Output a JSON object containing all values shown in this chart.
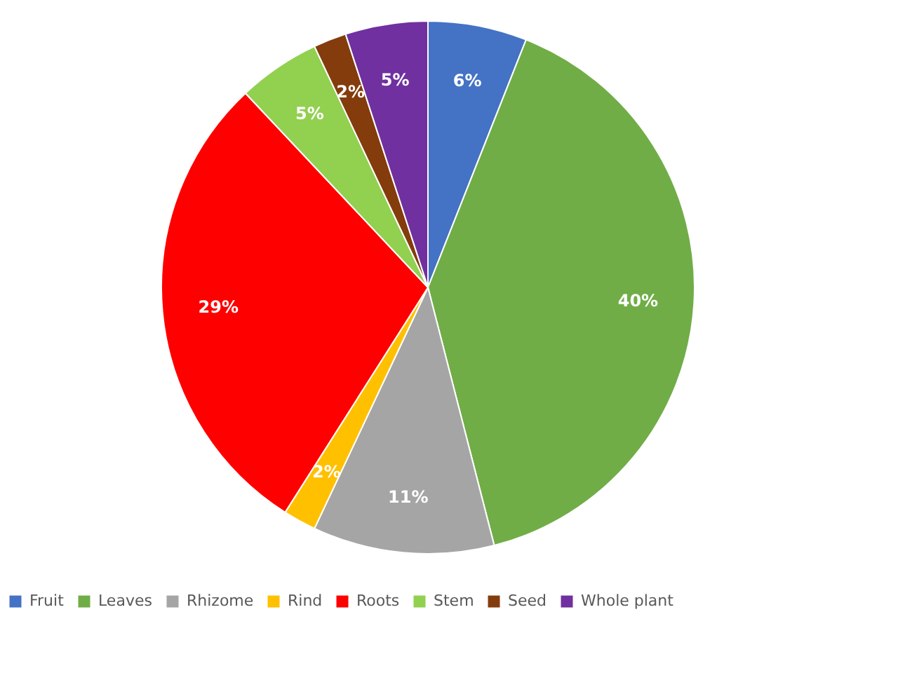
{
  "chart_data": {
    "type": "pie",
    "categories": [
      "Fruit",
      "Leaves",
      "Rhizome",
      "Rind",
      "Roots",
      "Stem",
      "Seed",
      "Whole plant"
    ],
    "values": [
      6,
      40,
      11,
      2,
      29,
      5,
      2,
      5
    ],
    "colors": [
      "#4472c4",
      "#70ad47",
      "#a5a5a5",
      "#ffc000",
      "#ff0000",
      "#92d050",
      "#843c0c",
      "#7030a0"
    ],
    "value_labels": [
      "6%",
      "40%",
      "11%",
      "2%",
      "29%",
      "5%",
      "2%",
      "5%"
    ],
    "legend": "bottom"
  }
}
